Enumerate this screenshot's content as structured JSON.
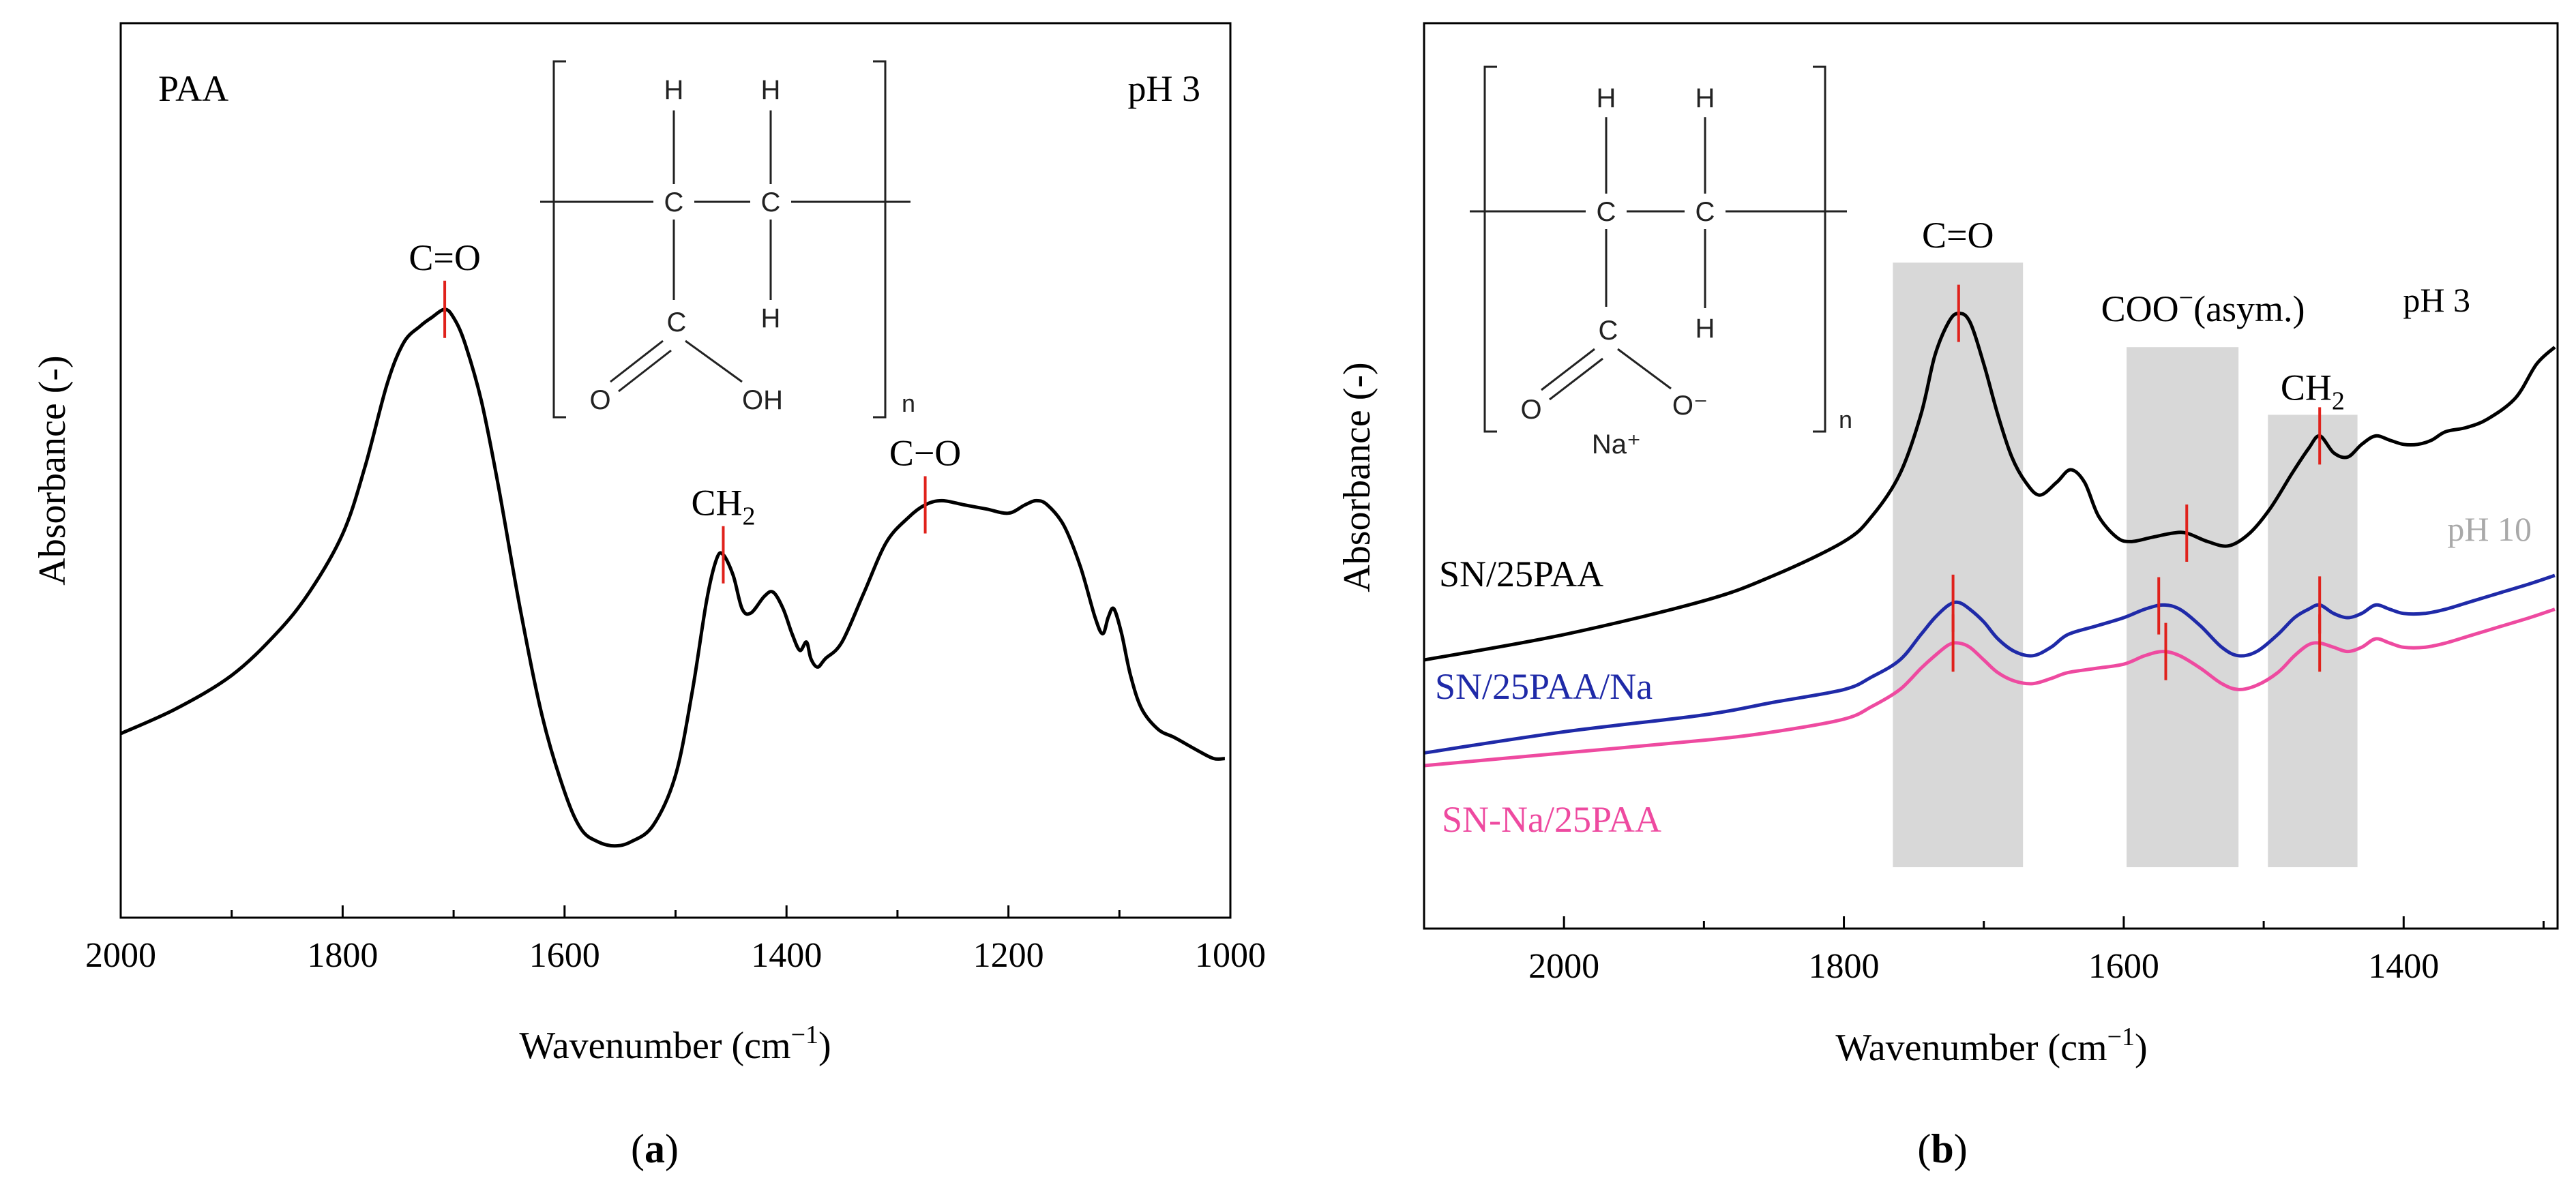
{
  "chart_data": [
    {
      "type": "line",
      "panel_label": "a",
      "xlabel": "Wavenumber (cm",
      "xlabel_sup": "−1",
      "xlabel_end": ")",
      "ylabel": "Absorbance (-)",
      "xlim": [
        2000,
        1000
      ],
      "ylim": [
        0,
        1
      ],
      "xticks": [
        "2000",
        "1800",
        "1600",
        "1400",
        "1200",
        "1000"
      ],
      "xtick_values": [
        2000,
        1800,
        1600,
        1400,
        1200,
        1000
      ],
      "corner_labels": {
        "left": "PAA",
        "right": "pH 3"
      },
      "structure_labels": {
        "h1": "H",
        "h2": "H",
        "h3": "H",
        "c1": "C",
        "c2": "C",
        "c3": "C",
        "o": "O",
        "oh": "OH",
        "n": "n"
      },
      "series": [
        {
          "color": "#000000",
          "points": [
            [
              2000,
              0.2
            ],
            [
              1950,
              0.23
            ],
            [
              1900,
              0.27
            ],
            [
              1860,
              0.32
            ],
            [
              1830,
              0.37
            ],
            [
              1800,
              0.44
            ],
            [
              1780,
              0.52
            ],
            [
              1760,
              0.62
            ],
            [
              1745,
              0.67
            ],
            [
              1730,
              0.69
            ],
            [
              1720,
              0.7
            ],
            [
              1708,
              0.71
            ],
            [
              1700,
              0.7
            ],
            [
              1690,
              0.67
            ],
            [
              1675,
              0.6
            ],
            [
              1660,
              0.5
            ],
            [
              1640,
              0.35
            ],
            [
              1620,
              0.22
            ],
            [
              1600,
              0.13
            ],
            [
              1585,
              0.085
            ],
            [
              1570,
              0.07
            ],
            [
              1555,
              0.065
            ],
            [
              1540,
              0.07
            ],
            [
              1520,
              0.09
            ],
            [
              1500,
              0.15
            ],
            [
              1485,
              0.25
            ],
            [
              1472,
              0.36
            ],
            [
              1463,
              0.41
            ],
            [
              1457,
              0.415
            ],
            [
              1448,
              0.39
            ],
            [
              1440,
              0.35
            ],
            [
              1432,
              0.345
            ],
            [
              1420,
              0.365
            ],
            [
              1412,
              0.37
            ],
            [
              1403,
              0.35
            ],
            [
              1395,
              0.32
            ],
            [
              1388,
              0.3
            ],
            [
              1382,
              0.31
            ],
            [
              1378,
              0.29
            ],
            [
              1372,
              0.28
            ],
            [
              1365,
              0.29
            ],
            [
              1350,
              0.31
            ],
            [
              1330,
              0.37
            ],
            [
              1310,
              0.43
            ],
            [
              1290,
              0.46
            ],
            [
              1275,
              0.475
            ],
            [
              1260,
              0.48
            ],
            [
              1240,
              0.475
            ],
            [
              1220,
              0.47
            ],
            [
              1200,
              0.465
            ],
            [
              1185,
              0.475
            ],
            [
              1175,
              0.48
            ],
            [
              1165,
              0.475
            ],
            [
              1150,
              0.45
            ],
            [
              1135,
              0.4
            ],
            [
              1122,
              0.34
            ],
            [
              1115,
              0.32
            ],
            [
              1110,
              0.34
            ],
            [
              1105,
              0.35
            ],
            [
              1098,
              0.32
            ],
            [
              1090,
              0.27
            ],
            [
              1080,
              0.23
            ],
            [
              1065,
              0.205
            ],
            [
              1050,
              0.195
            ],
            [
              1030,
              0.18
            ],
            [
              1015,
              0.17
            ],
            [
              1005,
              0.17
            ]
          ]
        }
      ],
      "peak_labels": [
        {
          "text": "C=O",
          "x": 1708,
          "y": 0.71
        },
        {
          "text": "CH",
          "sub": "2",
          "x": 1457,
          "y": 0.415
        },
        {
          "text": "C−O",
          "x": 1275,
          "y": 0.475
        }
      ]
    },
    {
      "type": "line",
      "panel_label": "b",
      "xlabel": "Wavenumber (cm",
      "xlabel_sup": "−1",
      "xlabel_end": ")",
      "ylabel": "Absorbance (-)",
      "xlim": [
        2100,
        1290
      ],
      "ylim": [
        0,
        1
      ],
      "xticks": [
        "2000",
        "1800",
        "1600",
        "1400"
      ],
      "xtick_values": [
        2000,
        1800,
        1600,
        1400
      ],
      "corner_labels": {
        "ph3": "pH 3",
        "ph10": "pH 10"
      },
      "structure_labels": {
        "h1": "H",
        "h2": "H",
        "h3": "H",
        "c1": "C",
        "c2": "C",
        "c3": "C",
        "o": "O",
        "ominus": "O⁻",
        "na": "Na⁺",
        "n": "n"
      },
      "shaded_regions": [
        {
          "label": "C=O",
          "x0": 1765,
          "x1": 1672,
          "y_top": 0.77
        },
        {
          "label": "COO",
          "label_sup": "−",
          "label_end": "(asym.)",
          "x0": 1598,
          "x1": 1518,
          "y_top": 0.67
        },
        {
          "label": "CH",
          "label_sub": "2",
          "x0": 1497,
          "x1": 1433,
          "y_top": 0.59
        }
      ],
      "series": [
        {
          "name": "SN/25PAA",
          "color": "#000000",
          "points": [
            [
              2100,
              0.3
            ],
            [
              2000,
              0.33
            ],
            [
              1900,
              0.37
            ],
            [
              1850,
              0.4
            ],
            [
              1800,
              0.44
            ],
            [
              1780,
              0.47
            ],
            [
              1760,
              0.52
            ],
            [
              1745,
              0.59
            ],
            [
              1735,
              0.66
            ],
            [
              1725,
              0.7
            ],
            [
              1718,
              0.71
            ],
            [
              1710,
              0.7
            ],
            [
              1700,
              0.65
            ],
            [
              1690,
              0.59
            ],
            [
              1680,
              0.54
            ],
            [
              1670,
              0.51
            ],
            [
              1660,
              0.495
            ],
            [
              1648,
              0.51
            ],
            [
              1638,
              0.525
            ],
            [
              1628,
              0.51
            ],
            [
              1618,
              0.47
            ],
            [
              1605,
              0.445
            ],
            [
              1595,
              0.44
            ],
            [
              1580,
              0.445
            ],
            [
              1565,
              0.45
            ],
            [
              1555,
              0.45
            ],
            [
              1540,
              0.44
            ],
            [
              1525,
              0.435
            ],
            [
              1510,
              0.45
            ],
            [
              1495,
              0.48
            ],
            [
              1480,
              0.52
            ],
            [
              1468,
              0.55
            ],
            [
              1460,
              0.565
            ],
            [
              1450,
              0.545
            ],
            [
              1440,
              0.54
            ],
            [
              1430,
              0.555
            ],
            [
              1420,
              0.565
            ],
            [
              1410,
              0.56
            ],
            [
              1400,
              0.555
            ],
            [
              1390,
              0.555
            ],
            [
              1380,
              0.56
            ],
            [
              1370,
              0.57
            ],
            [
              1355,
              0.575
            ],
            [
              1340,
              0.585
            ],
            [
              1320,
              0.61
            ],
            [
              1305,
              0.65
            ],
            [
              1292,
              0.67
            ]
          ]
        },
        {
          "name": "SN/25PAA/Na",
          "color": "#1f2aa8",
          "points": [
            [
              2100,
              0.19
            ],
            [
              2000,
              0.215
            ],
            [
              1900,
              0.235
            ],
            [
              1850,
              0.25
            ],
            [
              1800,
              0.265
            ],
            [
              1780,
              0.28
            ],
            [
              1760,
              0.3
            ],
            [
              1745,
              0.33
            ],
            [
              1735,
              0.35
            ],
            [
              1725,
              0.365
            ],
            [
              1718,
              0.368
            ],
            [
              1710,
              0.36
            ],
            [
              1700,
              0.345
            ],
            [
              1690,
              0.325
            ],
            [
              1678,
              0.31
            ],
            [
              1665,
              0.305
            ],
            [
              1652,
              0.315
            ],
            [
              1640,
              0.33
            ],
            [
              1620,
              0.34
            ],
            [
              1600,
              0.35
            ],
            [
              1585,
              0.36
            ],
            [
              1572,
              0.365
            ],
            [
              1560,
              0.36
            ],
            [
              1545,
              0.34
            ],
            [
              1530,
              0.315
            ],
            [
              1518,
              0.305
            ],
            [
              1505,
              0.31
            ],
            [
              1490,
              0.33
            ],
            [
              1478,
              0.35
            ],
            [
              1468,
              0.36
            ],
            [
              1460,
              0.365
            ],
            [
              1450,
              0.355
            ],
            [
              1440,
              0.35
            ],
            [
              1430,
              0.355
            ],
            [
              1420,
              0.365
            ],
            [
              1410,
              0.36
            ],
            [
              1400,
              0.355
            ],
            [
              1385,
              0.355
            ],
            [
              1370,
              0.36
            ],
            [
              1350,
              0.37
            ],
            [
              1330,
              0.38
            ],
            [
              1310,
              0.39
            ],
            [
              1292,
              0.4
            ]
          ]
        },
        {
          "name": "SN-Na/25PAA",
          "color": "#ee4aa0",
          "points": [
            [
              2100,
              0.175
            ],
            [
              2000,
              0.19
            ],
            [
              1900,
              0.205
            ],
            [
              1850,
              0.215
            ],
            [
              1800,
              0.23
            ],
            [
              1780,
              0.245
            ],
            [
              1760,
              0.265
            ],
            [
              1745,
              0.29
            ],
            [
              1735,
              0.305
            ],
            [
              1725,
              0.318
            ],
            [
              1718,
              0.32
            ],
            [
              1710,
              0.315
            ],
            [
              1700,
              0.3
            ],
            [
              1690,
              0.285
            ],
            [
              1678,
              0.275
            ],
            [
              1665,
              0.272
            ],
            [
              1652,
              0.278
            ],
            [
              1640,
              0.285
            ],
            [
              1620,
              0.29
            ],
            [
              1600,
              0.295
            ],
            [
              1585,
              0.305
            ],
            [
              1572,
              0.31
            ],
            [
              1560,
              0.305
            ],
            [
              1545,
              0.29
            ],
            [
              1530,
              0.272
            ],
            [
              1518,
              0.265
            ],
            [
              1505,
              0.27
            ],
            [
              1490,
              0.285
            ],
            [
              1478,
              0.305
            ],
            [
              1468,
              0.318
            ],
            [
              1460,
              0.32
            ],
            [
              1450,
              0.315
            ],
            [
              1440,
              0.31
            ],
            [
              1430,
              0.315
            ],
            [
              1420,
              0.325
            ],
            [
              1410,
              0.32
            ],
            [
              1400,
              0.315
            ],
            [
              1385,
              0.315
            ],
            [
              1370,
              0.32
            ],
            [
              1350,
              0.33
            ],
            [
              1330,
              0.34
            ],
            [
              1310,
              0.35
            ],
            [
              1292,
              0.36
            ]
          ]
        }
      ],
      "peak_marks": [
        {
          "x": 1718,
          "y": 0.71
        },
        {
          "x": 1555,
          "y": 0.45
        },
        {
          "x": 1460,
          "y": 0.565
        },
        {
          "x": 1722,
          "y": 0.367
        },
        {
          "x": 1575,
          "y": 0.364
        },
        {
          "x": 1460,
          "y": 0.365
        },
        {
          "x": 1722,
          "y": 0.32
        },
        {
          "x": 1570,
          "y": 0.31
        },
        {
          "x": 1460,
          "y": 0.32
        }
      ]
    }
  ],
  "colors": {
    "peak_marker": "#e0211b",
    "shade": "#d8d8d8",
    "ph10_label": "#a9a9a9",
    "axis": "#000000"
  }
}
